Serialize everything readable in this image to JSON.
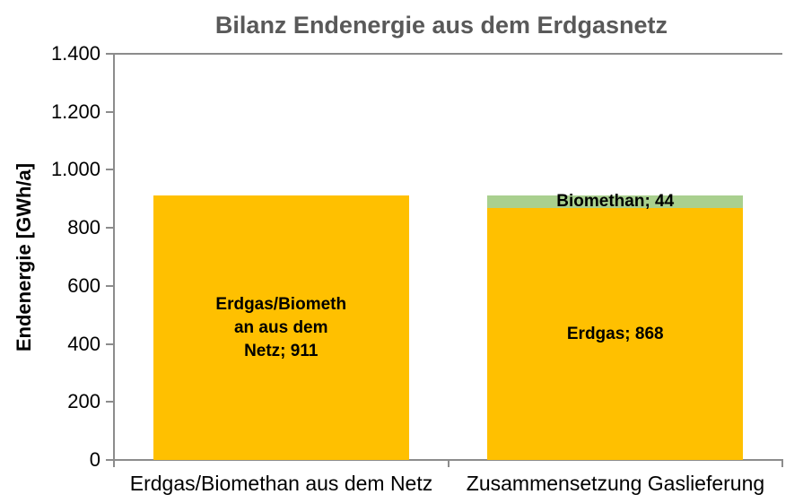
{
  "chart_data": {
    "type": "bar",
    "stacked": true,
    "title": "Bilanz Endenergie aus dem Erdgasnetz",
    "ylabel": "Endenergie [GWh/a]",
    "xlabel": "",
    "ylim": [
      0,
      1400
    ],
    "ytick_values": [
      1400,
      1200,
      1000,
      800,
      600,
      400,
      200,
      0
    ],
    "ytick_labels": [
      "1.400",
      "1.200",
      "1.000",
      "800",
      "600",
      "400",
      "200",
      "0"
    ],
    "grid": "top-border-line-only",
    "legend": "none",
    "categories": [
      "Erdgas/Biomethan aus dem Netz",
      "Zusammensetzung Gaslieferung"
    ],
    "bars": [
      {
        "category": "Erdgas/Biomethan aus dem Netz",
        "total": 911,
        "segments": [
          {
            "name": "Erdgas/Biomethan aus dem Netz",
            "value": 911,
            "color": "#FFC000",
            "label_lines": [
              "Erdgas/Biometh",
              "an aus dem",
              "Netz; 911"
            ]
          }
        ]
      },
      {
        "category": "Zusammensetzung Gaslieferung",
        "total": 912,
        "segments": [
          {
            "name": "Erdgas",
            "value": 868,
            "color": "#FFC000",
            "label_lines": [
              "Erdgas; 868"
            ]
          },
          {
            "name": "Biomethan",
            "value": 44,
            "color": "#A9D08E",
            "label_lines": [
              "Biomethan; 44"
            ]
          }
        ]
      }
    ]
  },
  "colors": {
    "title_text": "#595959",
    "axis_line": "#8C8C8C",
    "label_text": "#000000",
    "erdgas": "#FFC000",
    "biomethan": "#A9D08E",
    "background": "#FFFFFF"
  }
}
